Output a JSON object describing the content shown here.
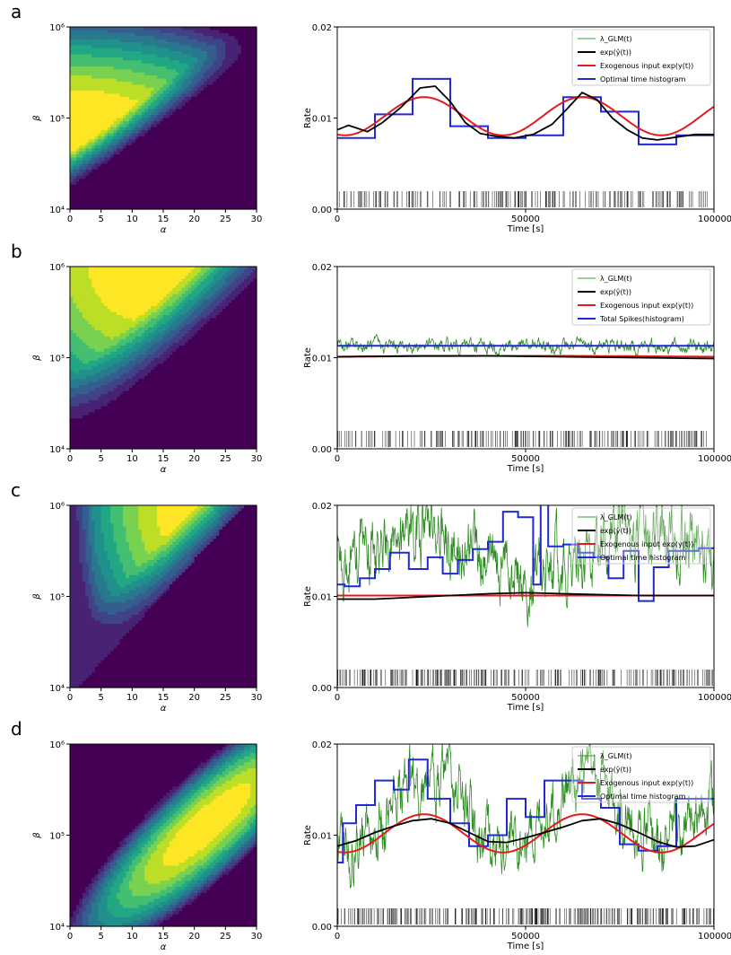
{
  "panels": [
    {
      "letter": "a",
      "heatmap": {
        "xlabel": "α",
        "ylabel": "β",
        "xticks": [
          "0",
          "5",
          "10",
          "15",
          "20",
          "25",
          "30"
        ],
        "yticks": [
          "10⁴",
          "10⁵",
          "10⁶"
        ],
        "xlim": [
          0,
          30
        ],
        "ylog_range": [
          4,
          6
        ],
        "peak": {
          "alpha": 0,
          "log10beta": 5.0
        },
        "colormap": "viridis"
      },
      "rate": {
        "ylabel": "Rate",
        "xlabel": "Time [s]",
        "yticks": [
          "0.00",
          "0.01",
          "0.02"
        ],
        "xticks": [
          "0",
          "50000",
          "100000"
        ],
        "xlim": [
          0,
          100000
        ],
        "ylim": [
          0,
          0.02
        ],
        "legend": [
          {
            "label": "λ_GLM(t)",
            "color": "#2ca02c"
          },
          {
            "label": "exp(ŷ(t))",
            "color": "#000000"
          },
          {
            "label": "Exogenous input exp(y(t))",
            "color": "#e41a1c"
          },
          {
            "label": "Optimal time histogram",
            "color": "#1f2ad6"
          }
        ],
        "histogram": {
          "edges": [
            0,
            10000,
            20000,
            30000,
            40000,
            50000,
            60000,
            70000,
            80000,
            90000,
            100000
          ],
          "values": [
            0.0078,
            0.0104,
            0.0143,
            0.0091,
            0.0078,
            0.0081,
            0.0123,
            0.0107,
            0.0071,
            0.0081
          ]
        },
        "exogenous": {
          "mean": 0.0102,
          "amp": 0.0021,
          "period": 42000,
          "peak_t": 23000
        },
        "estimate": {
          "x": [
            0,
            3000,
            8000,
            12000,
            17000,
            22000,
            26000,
            30000,
            34000,
            38000,
            42000,
            47000,
            52000,
            57000,
            61000,
            65000,
            69000,
            73000,
            77000,
            81000,
            85000,
            90000,
            95000,
            100000
          ],
          "y": [
            0.0087,
            0.0092,
            0.0085,
            0.0095,
            0.0112,
            0.0133,
            0.0135,
            0.0118,
            0.0095,
            0.0083,
            0.008,
            0.0078,
            0.0082,
            0.0093,
            0.011,
            0.0128,
            0.012,
            0.01,
            0.0087,
            0.0078,
            0.0076,
            0.0079,
            0.0082,
            0.0082
          ]
        },
        "glm": {
          "show": false,
          "mean": 0.01,
          "noise": 0.0
        },
        "spikes": {
          "count": 210
        }
      }
    },
    {
      "letter": "b",
      "heatmap": {
        "xlabel": "α",
        "ylabel": "β",
        "xticks": [
          "0",
          "5",
          "10",
          "15",
          "20",
          "25",
          "30"
        ],
        "yticks": [
          "10⁴",
          "10⁵",
          "10⁶"
        ],
        "xlim": [
          0,
          30
        ],
        "ylog_range": [
          4,
          6
        ],
        "peak": {
          "alpha": 12,
          "log10beta": 6.05
        },
        "colormap": "viridis"
      },
      "rate": {
        "ylabel": "Rate",
        "xlabel": "Time [s]",
        "yticks": [
          "0.00",
          "0.01",
          "0.02"
        ],
        "xticks": [
          "0",
          "50000",
          "100000"
        ],
        "xlim": [
          0,
          100000
        ],
        "ylim": [
          0,
          0.02
        ],
        "legend": [
          {
            "label": "λ_GLM(t)",
            "color": "#2ca02c"
          },
          {
            "label": "exp(ŷ(t))",
            "color": "#000000"
          },
          {
            "label": "Exogenous input exp(y(t))",
            "color": "#e41a1c"
          },
          {
            "label": "Total Spikes(histogram)",
            "color": "#1f2ad6"
          }
        ],
        "histogram": {
          "edges": [
            0,
            100000
          ],
          "values": [
            0.0113
          ]
        },
        "exogenous": {
          "mean": 0.0101,
          "amp": 0.0001,
          "period": 200000,
          "peak_t": 50000
        },
        "estimate": {
          "x": [
            0,
            20000,
            40000,
            60000,
            80000,
            100000
          ],
          "y": [
            0.0101,
            0.0102,
            0.0102,
            0.0101,
            0.01,
            0.0099
          ]
        },
        "glm": {
          "show": true,
          "mean": 0.0113,
          "noise": 0.0006
        },
        "spikes": {
          "count": 230
        }
      }
    },
    {
      "letter": "c",
      "heatmap": {
        "xlabel": "α",
        "ylabel": "β",
        "xticks": [
          "0",
          "5",
          "10",
          "15",
          "20",
          "25",
          "30"
        ],
        "yticks": [
          "10⁴",
          "10⁵",
          "10⁶"
        ],
        "xlim": [
          0,
          30
        ],
        "ylog_range": [
          4,
          6
        ],
        "peak": {
          "alpha": 21,
          "log10beta": 6.0
        },
        "colormap": "viridis"
      },
      "rate": {
        "ylabel": "Rate",
        "xlabel": "Time [s]",
        "yticks": [
          "0.00",
          "0.01",
          "0.02"
        ],
        "xticks": [
          "0",
          "50000",
          "100000"
        ],
        "xlim": [
          0,
          100000
        ],
        "ylim": [
          0,
          0.02
        ],
        "legend": [
          {
            "label": "λ_GLM(t)",
            "color": "#2ca02c"
          },
          {
            "label": "exp(ŷ(t))",
            "color": "#000000"
          },
          {
            "label": "Exogenous input exp(y(t))",
            "color": "#e41a1c"
          },
          {
            "label": "Optimal time histogram",
            "color": "#1f2ad6"
          }
        ],
        "histogram": {
          "edges": [
            0,
            2000,
            6000,
            10000,
            14000,
            19000,
            24000,
            28000,
            32000,
            36000,
            40000,
            44000,
            48000,
            52000,
            54000,
            56000,
            60000,
            64000,
            68000,
            72000,
            76000,
            80000,
            84000,
            88000,
            92000,
            96000,
            100000
          ],
          "values": [
            0.0113,
            0.0111,
            0.012,
            0.013,
            0.0148,
            0.013,
            0.0143,
            0.0125,
            0.014,
            0.0152,
            0.016,
            0.0193,
            0.0187,
            0.0113,
            0.0205,
            0.0155,
            0.0157,
            0.0148,
            0.0143,
            0.012,
            0.015,
            0.0095,
            0.0132,
            0.015,
            0.015,
            0.0153
          ]
        },
        "exogenous": {
          "mean": 0.0101,
          "amp": 0.0,
          "period": 42000,
          "peak_t": 23000
        },
        "estimate": {
          "x": [
            0,
            10000,
            20000,
            30000,
            40000,
            50000,
            60000,
            70000,
            80000,
            90000,
            100000
          ],
          "y": [
            0.0097,
            0.0097,
            0.0099,
            0.0101,
            0.0103,
            0.0104,
            0.0103,
            0.0102,
            0.0101,
            0.0101,
            0.0101
          ]
        },
        "glm": {
          "show": true,
          "mean": 0.015,
          "noise": 0.003
        },
        "spikes": {
          "count": 260
        }
      }
    },
    {
      "letter": "d",
      "heatmap": {
        "xlabel": "α",
        "ylabel": "β",
        "xticks": [
          "0",
          "5",
          "10",
          "15",
          "20",
          "25",
          "30"
        ],
        "yticks": [
          "10⁴",
          "10⁵",
          "10⁶"
        ],
        "xlim": [
          0,
          30
        ],
        "ylog_range": [
          4,
          6
        ],
        "peak": {
          "alpha": 22,
          "log10beta": 5.15
        },
        "colormap": "viridis"
      },
      "rate": {
        "ylabel": "Rate",
        "xlabel": "Time [s]",
        "yticks": [
          "0.00",
          "0.01",
          "0.02"
        ],
        "xticks": [
          "0",
          "50000",
          "100000"
        ],
        "xlim": [
          0,
          100000
        ],
        "ylim": [
          0,
          0.02
        ],
        "legend": [
          {
            "label": "λ_GLM(t)",
            "color": "#2ca02c"
          },
          {
            "label": "exp(ŷ(t))",
            "color": "#000000"
          },
          {
            "label": "Exogenous input exp(y(t))",
            "color": "#e41a1c"
          },
          {
            "label": "Optimal time histogram",
            "color": "#1f2ad6"
          }
        ],
        "histogram": {
          "edges": [
            0,
            1500,
            5000,
            10000,
            15000,
            19000,
            24000,
            30000,
            35000,
            40000,
            45000,
            50000,
            55000,
            60000,
            65000,
            70000,
            75000,
            80000,
            85000,
            90000,
            95000,
            100000
          ],
          "values": [
            0.007,
            0.0113,
            0.0133,
            0.016,
            0.015,
            0.0183,
            0.014,
            0.0113,
            0.0088,
            0.01,
            0.014,
            0.012,
            0.016,
            0.016,
            0.014,
            0.013,
            0.009,
            0.0083,
            0.0088,
            0.014,
            0.014
          ]
        },
        "exogenous": {
          "mean": 0.0102,
          "amp": 0.0021,
          "period": 42000,
          "peak_t": 23000
        },
        "estimate": {
          "x": [
            0,
            5000,
            10000,
            15000,
            20000,
            25000,
            30000,
            35000,
            40000,
            45000,
            50000,
            55000,
            60000,
            65000,
            70000,
            75000,
            80000,
            85000,
            90000,
            95000,
            100000
          ],
          "y": [
            0.0088,
            0.0094,
            0.0103,
            0.011,
            0.0116,
            0.0118,
            0.0113,
            0.0103,
            0.0093,
            0.0092,
            0.0097,
            0.0103,
            0.0109,
            0.0116,
            0.0118,
            0.0112,
            0.0103,
            0.0093,
            0.0087,
            0.0088,
            0.0095
          ]
        },
        "glm": {
          "show": true,
          "mean": 0.0135,
          "noise": 0.0028
        },
        "spikes": {
          "count": 300
        }
      }
    }
  ]
}
